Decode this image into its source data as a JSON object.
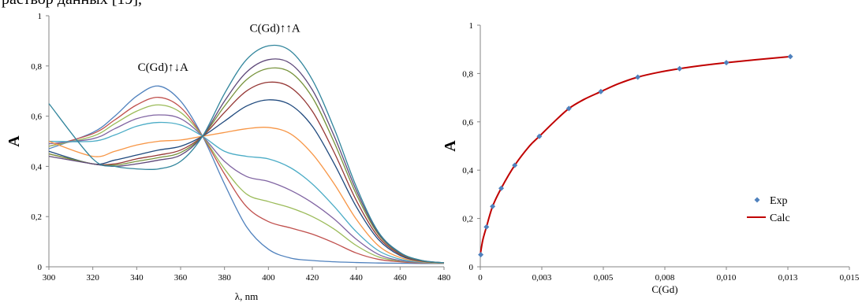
{
  "page": {
    "top_text": "раствор данных [19],"
  },
  "chart_data": [
    {
      "type": "line",
      "title": "",
      "xlabel": "λ, nm",
      "ylabel": "A",
      "xlim": [
        300,
        480
      ],
      "ylim": [
        0,
        1
      ],
      "x_ticks": [
        "300",
        "320",
        "340",
        "360",
        "380",
        "400",
        "420",
        "440",
        "460",
        "480"
      ],
      "y_ticks": [
        "0",
        "0,2",
        "0,4",
        "0,6",
        "0,8",
        "1"
      ],
      "grid": false,
      "legend": "none",
      "annotations": [
        {
          "text": "C(Gd)↑↓A",
          "x": 352,
          "y": 0.78
        },
        {
          "text": "C(Gd)↑↑A",
          "x": 403,
          "y": 0.935
        }
      ],
      "x": [
        300,
        320,
        330,
        340,
        350,
        360,
        370,
        380,
        390,
        400,
        410,
        420,
        430,
        440,
        450,
        460,
        470,
        480
      ],
      "series": [
        {
          "color": "#4f81bd",
          "values": [
            0.47,
            0.535,
            0.6,
            0.68,
            0.72,
            0.66,
            0.52,
            0.33,
            0.16,
            0.07,
            0.035,
            0.025,
            0.02,
            0.017,
            0.015,
            0.014,
            0.013,
            0.013
          ]
        },
        {
          "color": "#c0504d",
          "values": [
            0.48,
            0.53,
            0.585,
            0.645,
            0.675,
            0.635,
            0.52,
            0.37,
            0.24,
            0.18,
            0.155,
            0.13,
            0.095,
            0.055,
            0.03,
            0.02,
            0.015,
            0.014
          ]
        },
        {
          "color": "#9bbb59",
          "values": [
            0.48,
            0.52,
            0.57,
            0.62,
            0.645,
            0.615,
            0.52,
            0.39,
            0.29,
            0.26,
            0.235,
            0.2,
            0.15,
            0.085,
            0.04,
            0.023,
            0.016,
            0.014
          ]
        },
        {
          "color": "#8064a2",
          "values": [
            0.49,
            0.51,
            0.55,
            0.59,
            0.605,
            0.59,
            0.52,
            0.42,
            0.36,
            0.34,
            0.305,
            0.255,
            0.19,
            0.11,
            0.05,
            0.025,
            0.017,
            0.015
          ]
        },
        {
          "color": "#4bacc6",
          "values": [
            0.5,
            0.5,
            0.525,
            0.56,
            0.575,
            0.565,
            0.52,
            0.46,
            0.44,
            0.43,
            0.395,
            0.33,
            0.24,
            0.14,
            0.065,
            0.03,
            0.018,
            0.015
          ]
        },
        {
          "color": "#f79646",
          "values": [
            0.5,
            0.44,
            0.46,
            0.485,
            0.5,
            0.505,
            0.52,
            0.535,
            0.55,
            0.555,
            0.53,
            0.45,
            0.33,
            0.19,
            0.085,
            0.037,
            0.02,
            0.015
          ]
        },
        {
          "color": "#1f497d",
          "values": [
            0.46,
            0.41,
            0.425,
            0.445,
            0.465,
            0.48,
            0.52,
            0.58,
            0.64,
            0.665,
            0.645,
            0.56,
            0.41,
            0.24,
            0.11,
            0.045,
            0.022,
            0.016
          ]
        },
        {
          "color": "#953735",
          "values": [
            0.45,
            0.41,
            0.41,
            0.43,
            0.445,
            0.465,
            0.52,
            0.615,
            0.7,
            0.735,
            0.715,
            0.62,
            0.455,
            0.265,
            0.12,
            0.05,
            0.023,
            0.016
          ]
        },
        {
          "color": "#77933c",
          "values": [
            0.45,
            0.41,
            0.405,
            0.42,
            0.435,
            0.455,
            0.52,
            0.64,
            0.745,
            0.79,
            0.775,
            0.675,
            0.495,
            0.29,
            0.13,
            0.053,
            0.024,
            0.016
          ]
        },
        {
          "color": "#5f497a",
          "values": [
            0.44,
            0.41,
            0.4,
            0.41,
            0.425,
            0.445,
            0.52,
            0.66,
            0.775,
            0.825,
            0.81,
            0.705,
            0.52,
            0.305,
            0.135,
            0.055,
            0.025,
            0.016
          ]
        },
        {
          "color": "#31859c",
          "values": [
            0.65,
            0.43,
            0.4,
            0.39,
            0.39,
            0.42,
            0.52,
            0.69,
            0.825,
            0.88,
            0.86,
            0.745,
            0.55,
            0.32,
            0.14,
            0.057,
            0.025,
            0.016
          ]
        }
      ]
    },
    {
      "type": "scatter",
      "title": "",
      "xlabel": "C(Gd)",
      "ylabel": "A",
      "xlim": [
        0,
        0.015
      ],
      "ylim": [
        0,
        1
      ],
      "x_ticks": [
        "0",
        "0,003",
        "0,005",
        "0,008",
        "0,010",
        "0,013",
        "0,015"
      ],
      "y_ticks": [
        "0",
        "0,2",
        "0,4",
        "0,6",
        "0,8",
        "1"
      ],
      "grid": false,
      "legend": "right",
      "series": [
        {
          "name": "Exp",
          "style": "markers",
          "color": "#4f81bd",
          "x": [
            2e-05,
            0.00025,
            0.0005,
            0.00085,
            0.0014,
            0.0024,
            0.0036,
            0.0049,
            0.0064,
            0.0081,
            0.01,
            0.0126
          ],
          "y": [
            0.05,
            0.165,
            0.25,
            0.325,
            0.42,
            0.54,
            0.655,
            0.725,
            0.785,
            0.82,
            0.845,
            0.87
          ]
        },
        {
          "name": "Calc",
          "style": "line",
          "color": "#c00000",
          "x": [
            0,
            0.0001,
            0.00025,
            0.0005,
            0.00085,
            0.0014,
            0.002,
            0.0024,
            0.003,
            0.0036,
            0.0042,
            0.0049,
            0.0056,
            0.0064,
            0.0072,
            0.0081,
            0.009,
            0.01,
            0.0112,
            0.0126
          ],
          "y": [
            0.05,
            0.11,
            0.165,
            0.25,
            0.325,
            0.42,
            0.5,
            0.54,
            0.6,
            0.655,
            0.692,
            0.725,
            0.757,
            0.785,
            0.804,
            0.82,
            0.833,
            0.845,
            0.857,
            0.87
          ]
        }
      ]
    }
  ]
}
